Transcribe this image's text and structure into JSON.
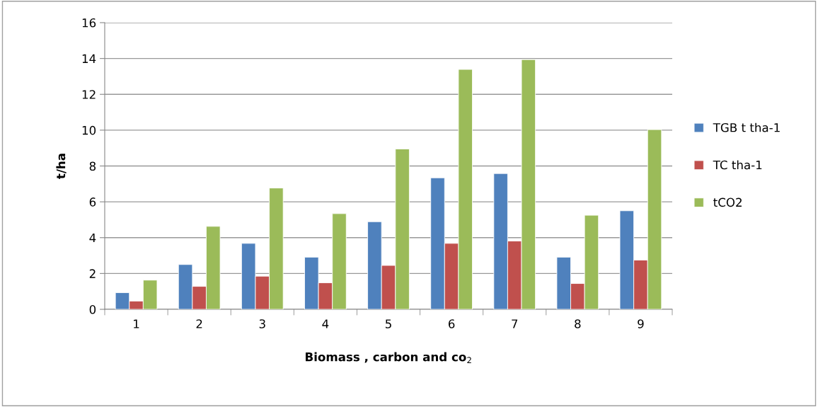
{
  "chart_data": {
    "type": "bar",
    "xlabel": "Biomass , carbon and co$_{2}$",
    "ylabel": "t/ha",
    "categories": [
      "1",
      "2",
      "3",
      "4",
      "5",
      "6",
      "7",
      "8",
      "9"
    ],
    "series": [
      {
        "name": "TGB t tha-1",
        "color": "#4f81bd",
        "values": [
          0.93,
          2.5,
          3.68,
          2.91,
          4.89,
          7.34,
          7.58,
          2.91,
          5.5
        ]
      },
      {
        "name": "TC tha-1",
        "color": "#c0504d",
        "values": [
          0.46,
          1.28,
          1.85,
          1.48,
          2.45,
          3.68,
          3.81,
          1.44,
          2.75
        ]
      },
      {
        "name": "tCO2",
        "color": "#9bbb59",
        "values": [
          1.63,
          4.63,
          6.77,
          5.34,
          8.95,
          13.39,
          13.94,
          5.25,
          10.03
        ]
      }
    ],
    "ylim": [
      0,
      16
    ],
    "yticks": [
      0,
      2,
      4,
      6,
      8,
      10,
      12,
      14,
      16
    ],
    "grid": "y",
    "legend": "right"
  }
}
